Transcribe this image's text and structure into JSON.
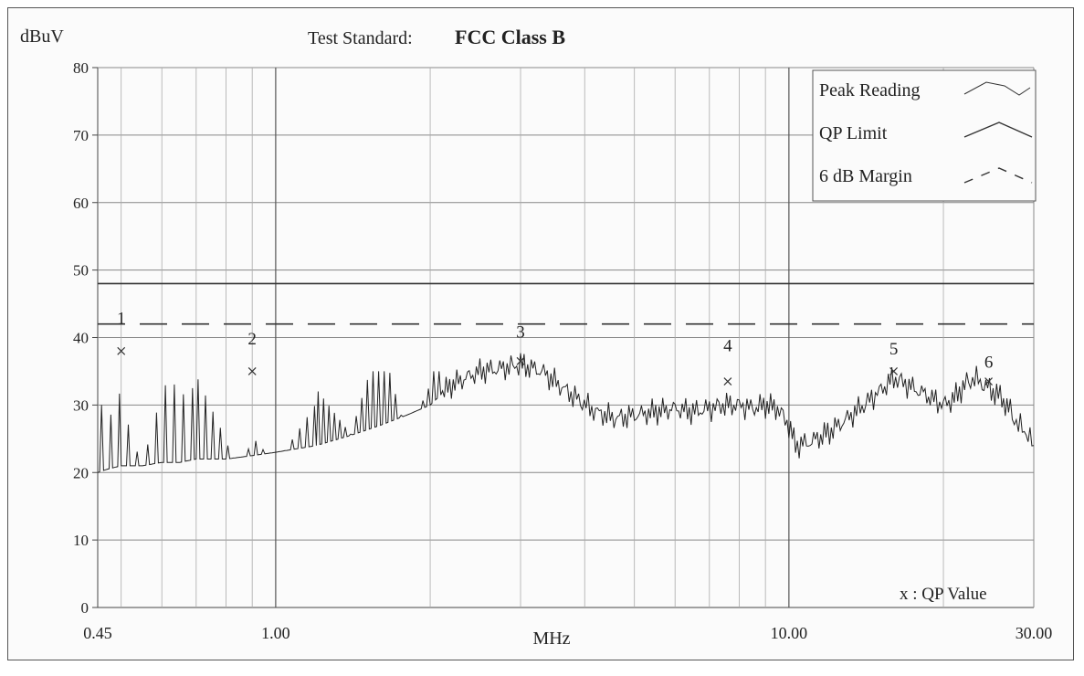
{
  "chart_data": {
    "type": "line",
    "header": {
      "y_unit": "dBuV",
      "standard_label": "Test Standard:",
      "standard_value": "FCC Class B"
    },
    "xlabel": "MHz",
    "x_scale": "log",
    "xlim": [
      0.45,
      30.0
    ],
    "ylim": [
      0,
      80
    ],
    "y_ticks": [
      "0",
      "10",
      "20",
      "30",
      "40",
      "50",
      "60",
      "70",
      "80"
    ],
    "x_ticks": [
      "0.45",
      "1.00",
      "10.00",
      "30.00"
    ],
    "grid": true,
    "legend_position": "top-right",
    "legend": [
      {
        "label": "Peak Reading",
        "style": "solid-thin"
      },
      {
        "label": "QP Limit",
        "style": "solid"
      },
      {
        "label": "6 dB Margin",
        "style": "dashed"
      }
    ],
    "qp_note": "x : QP Value",
    "series": [
      {
        "name": "Peak Reading",
        "color": "#222222",
        "points": [
          [
            0.45,
            20
          ],
          [
            0.47,
            20.5
          ],
          [
            0.5,
            21
          ],
          [
            0.55,
            21
          ],
          [
            0.6,
            21.5
          ],
          [
            0.65,
            21.5
          ],
          [
            0.7,
            22
          ],
          [
            0.8,
            22
          ],
          [
            0.9,
            22.5
          ],
          [
            1.0,
            23
          ],
          [
            1.2,
            24
          ],
          [
            1.4,
            25.5
          ],
          [
            1.6,
            27
          ],
          [
            1.8,
            28.5
          ],
          [
            2.0,
            30
          ],
          [
            2.2,
            33
          ],
          [
            2.5,
            35
          ],
          [
            2.8,
            35.5
          ],
          [
            3.0,
            36
          ],
          [
            3.3,
            35
          ],
          [
            3.7,
            32
          ],
          [
            4.2,
            29
          ],
          [
            4.6,
            28
          ],
          [
            5.0,
            28.5
          ],
          [
            5.5,
            29
          ],
          [
            6.0,
            29.5
          ],
          [
            6.5,
            29
          ],
          [
            7.0,
            29.5
          ],
          [
            7.5,
            30
          ],
          [
            8.0,
            30
          ],
          [
            8.5,
            29.5
          ],
          [
            9.0,
            30
          ],
          [
            9.5,
            29.5
          ],
          [
            10.0,
            27
          ],
          [
            10.3,
            24
          ],
          [
            11.0,
            24.5
          ],
          [
            12.0,
            26
          ],
          [
            13.0,
            28
          ],
          [
            14.0,
            30
          ],
          [
            15.0,
            32
          ],
          [
            16.0,
            34
          ],
          [
            17.0,
            33
          ],
          [
            18.0,
            32
          ],
          [
            19.0,
            31
          ],
          [
            20.0,
            30
          ],
          [
            21.0,
            31
          ],
          [
            22.0,
            33
          ],
          [
            23.0,
            34
          ],
          [
            24.0,
            33
          ],
          [
            25.0,
            32
          ],
          [
            26.0,
            31
          ],
          [
            27.0,
            29
          ],
          [
            28.0,
            27
          ],
          [
            29.0,
            26
          ],
          [
            30.0,
            24
          ]
        ]
      },
      {
        "name": "QP Limit",
        "color": "#333333",
        "level": 48
      },
      {
        "name": "6 dB Margin",
        "color": "#333333",
        "level": 42
      }
    ],
    "markers": [
      {
        "label": "1",
        "f": 0.5,
        "qp": 38,
        "label_y": 42
      },
      {
        "label": "2",
        "f": 0.9,
        "qp": 35,
        "label_y": 39
      },
      {
        "label": "3",
        "f": 3.0,
        "qp": 36.5,
        "label_y": 40
      },
      {
        "label": "4",
        "f": 7.6,
        "qp": 33.5,
        "label_y": 38
      },
      {
        "label": "5",
        "f": 16.0,
        "qp": 35,
        "label_y": 37.5
      },
      {
        "label": "6",
        "f": 24.5,
        "qp": 33.5,
        "label_y": 35.5
      }
    ]
  }
}
